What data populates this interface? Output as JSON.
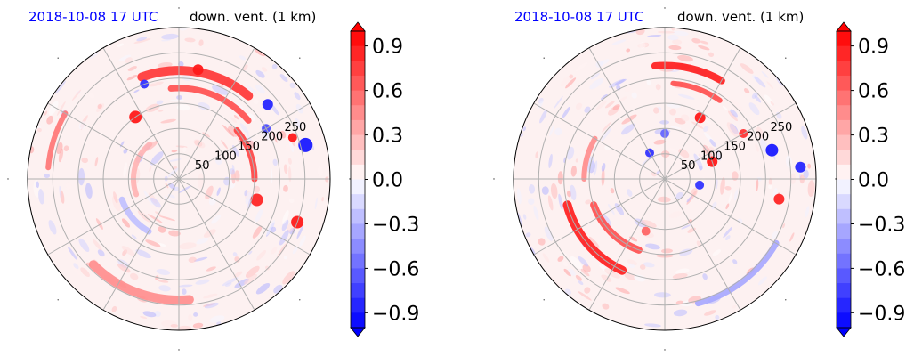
{
  "chart_data": [
    {
      "type": "polar-map",
      "title_time": "2018-10-08 17 UTC",
      "title_var": "down. vent. (1 km)",
      "r_ticks": [
        50,
        100,
        150,
        200,
        250
      ],
      "r_max": 300,
      "theta_gridlines_deg": [
        0,
        30,
        60,
        90,
        120,
        150,
        180,
        210,
        240,
        270,
        300,
        330
      ],
      "colorbar": {
        "ticks": [
          -0.9,
          -0.6,
          -0.3,
          0.0,
          0.3,
          0.6,
          0.9
        ],
        "tick_labels": [
          "−0.9",
          "−0.6",
          "−0.3",
          "0.0",
          "0.3",
          "0.6",
          "0.9"
        ],
        "range": [
          -1.0,
          1.0
        ],
        "extend": "both",
        "colormap": "bwr"
      },
      "features": [
        {
          "kind": "band",
          "r": 215,
          "a0": 50,
          "a1": 110,
          "w": 10,
          "value": 0.8
        },
        {
          "kind": "band",
          "r": 180,
          "a0": 40,
          "a1": 95,
          "w": 7,
          "value": 0.7
        },
        {
          "kind": "band",
          "r": 150,
          "a0": 0,
          "a1": 40,
          "w": 7,
          "value": 0.75
        },
        {
          "kind": "band",
          "r": 240,
          "a0": 225,
          "a1": 275,
          "w": 10,
          "value": 0.45
        },
        {
          "kind": "band",
          "r": 260,
          "a0": 150,
          "a1": 175,
          "w": 6,
          "value": 0.55
        },
        {
          "kind": "band",
          "r": 120,
          "a0": 200,
          "a1": 240,
          "w": 7,
          "value": -0.25
        },
        {
          "kind": "band",
          "r": 90,
          "a0": 130,
          "a1": 200,
          "w": 6,
          "value": 0.3
        },
        {
          "kind": "blob",
          "r": 160,
          "a": 345,
          "rr": 7,
          "value": 0.85
        },
        {
          "kind": "blob",
          "r": 150,
          "a": 125,
          "rr": 7,
          "value": 0.9
        },
        {
          "kind": "blob",
          "r": 250,
          "a": 340,
          "rr": 7,
          "value": 0.9
        },
        {
          "kind": "blob",
          "r": 260,
          "a": 15,
          "rr": 8,
          "value": -0.9
        },
        {
          "kind": "blob",
          "r": 220,
          "a": 80,
          "rr": 6,
          "value": 0.9
        },
        {
          "kind": "blob",
          "r": 200,
          "a": 110,
          "rr": 5,
          "value": -0.8
        },
        {
          "kind": "blob",
          "r": 230,
          "a": 40,
          "rr": 6,
          "value": -0.85
        },
        {
          "kind": "blob",
          "r": 240,
          "a": 20,
          "rr": 5,
          "value": 0.9
        },
        {
          "kind": "blob",
          "r": 200,
          "a": 30,
          "rr": 5,
          "value": -0.7
        }
      ]
    },
    {
      "type": "polar-map",
      "title_time": "2018-10-08 17 UTC",
      "title_var": "down. vent. (1 km)",
      "r_ticks": [
        50,
        100,
        150,
        200,
        250
      ],
      "r_max": 300,
      "theta_gridlines_deg": [
        0,
        30,
        60,
        90,
        120,
        150,
        180,
        210,
        240,
        270,
        300,
        330
      ],
      "colorbar": {
        "ticks": [
          -0.9,
          -0.6,
          -0.3,
          0.0,
          0.3,
          0.6,
          0.9
        ],
        "tick_labels": [
          "−0.9",
          "−0.6",
          "−0.3",
          "0.0",
          "0.3",
          "0.6",
          "0.9"
        ],
        "range": [
          -1.0,
          1.0
        ],
        "extend": "both",
        "colormap": "bwr"
      },
      "features": [
        {
          "kind": "band",
          "r": 200,
          "a0": 195,
          "a1": 245,
          "w": 10,
          "value": 0.9
        },
        {
          "kind": "band",
          "r": 150,
          "a0": 200,
          "a1": 250,
          "w": 8,
          "value": 0.7
        },
        {
          "kind": "band",
          "r": 225,
          "a0": 60,
          "a1": 95,
          "w": 8,
          "value": 0.9
        },
        {
          "kind": "band",
          "r": 190,
          "a0": 55,
          "a1": 85,
          "w": 6,
          "value": 0.7
        },
        {
          "kind": "band",
          "r": 255,
          "a0": 285,
          "a1": 330,
          "w": 7,
          "value": -0.35
        },
        {
          "kind": "band",
          "r": 160,
          "a0": 150,
          "a1": 180,
          "w": 6,
          "value": 0.45
        },
        {
          "kind": "blob",
          "r": 100,
          "a": 20,
          "rr": 6,
          "value": 0.9
        },
        {
          "kind": "blob",
          "r": 70,
          "a": 350,
          "rr": 5,
          "value": -0.8
        },
        {
          "kind": "blob",
          "r": 60,
          "a": 120,
          "rr": 5,
          "value": -0.8
        },
        {
          "kind": "blob",
          "r": 140,
          "a": 60,
          "rr": 6,
          "value": 0.9
        },
        {
          "kind": "blob",
          "r": 220,
          "a": 15,
          "rr": 7,
          "value": -0.9
        },
        {
          "kind": "blob",
          "r": 230,
          "a": 350,
          "rr": 6,
          "value": 0.85
        },
        {
          "kind": "blob",
          "r": 180,
          "a": 30,
          "rr": 5,
          "value": 0.8
        },
        {
          "kind": "blob",
          "r": 270,
          "a": 5,
          "rr": 6,
          "value": -0.85
        },
        {
          "kind": "blob",
          "r": 110,
          "a": 250,
          "rr": 5,
          "value": 0.6
        },
        {
          "kind": "blob",
          "r": 90,
          "a": 90,
          "rr": 5,
          "value": -0.6
        }
      ]
    }
  ]
}
